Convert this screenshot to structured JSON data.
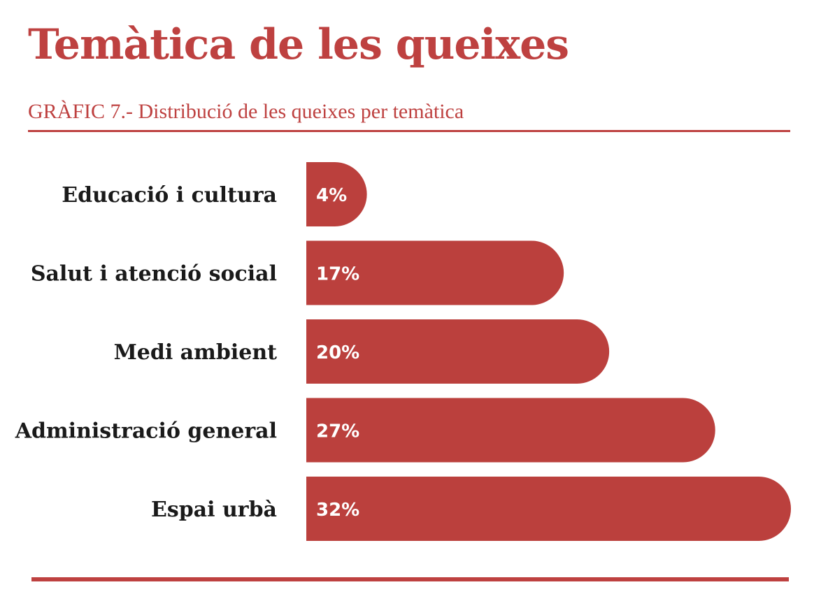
{
  "header": {
    "title": "Temàtica de les queixes",
    "subtitle": "GRÀFIC 7.- Distribució de les queixes per temàtica"
  },
  "colors": {
    "accent": "#be4140",
    "bar": "#bb403d",
    "label_text": "#1a1a1a",
    "value_text": "#ffffff"
  },
  "chart_data": {
    "type": "bar",
    "orientation": "horizontal",
    "categories": [
      "Educació i cultura",
      "Salut i atenció social",
      "Medi ambient",
      "Administració general",
      "Espai urbà"
    ],
    "values": [
      4,
      17,
      20,
      27,
      32
    ],
    "value_labels": [
      "4%",
      "17%",
      "20%",
      "27%",
      "32%"
    ],
    "unit": "%",
    "xlim": [
      0,
      32
    ],
    "grid": false,
    "legend": "none"
  }
}
